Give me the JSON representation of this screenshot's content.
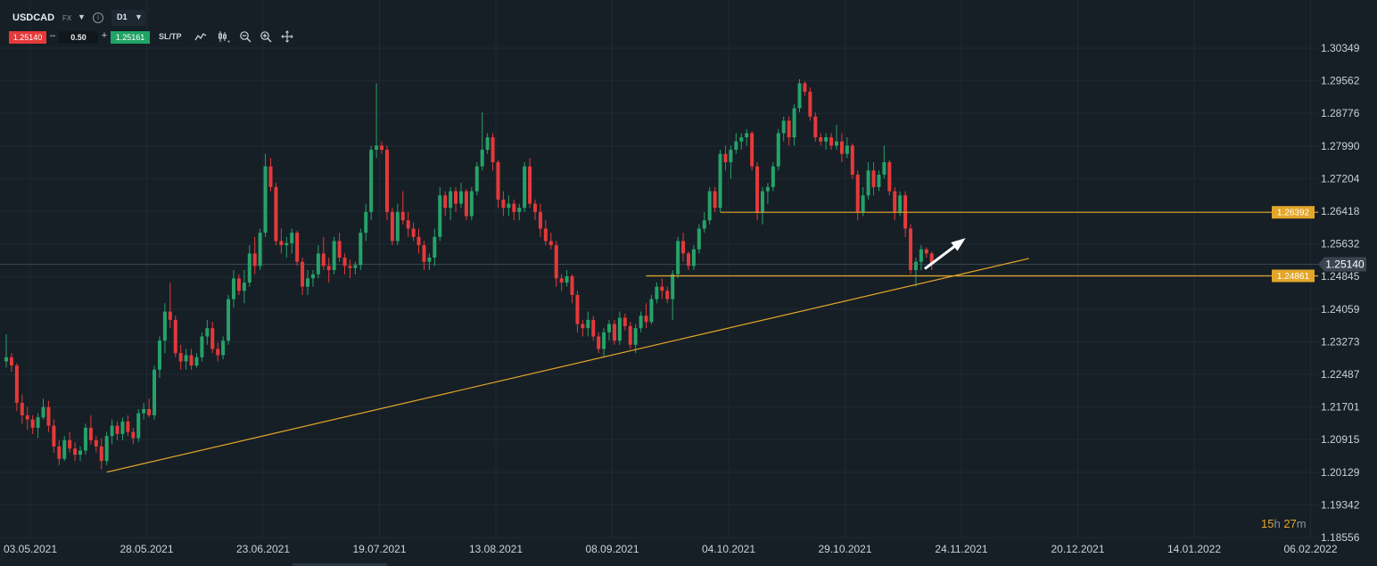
{
  "toolbar": {
    "symbol": "USDCAD",
    "market": "FX",
    "timeframe": "D1",
    "sell_price": "1.25140",
    "minus": "–",
    "quantity": "0.50",
    "plus": "+",
    "buy_price": "1.25161",
    "sltp_label": "SL/TP",
    "tools": [
      "line-chart-icon",
      "candles-settings-icon",
      "zoom-out-icon",
      "zoom-in-icon",
      "crosshair-icon"
    ]
  },
  "timer": {
    "hours": "15",
    "h_unit": "h",
    "minutes": "27",
    "m_unit": "m"
  },
  "colors": {
    "background": "#161f26",
    "grid": "#1f2a33",
    "bull": "#26a269",
    "bear": "#e5393a",
    "trendline": "#e4a62a",
    "current_price": "#3a4550"
  },
  "chart_data": {
    "type": "candlestick",
    "symbol": "USDCAD",
    "timeframe": "D1",
    "x_labels": [
      "03.05.2021",
      "28.05.2021",
      "23.06.2021",
      "19.07.2021",
      "13.08.2021",
      "08.09.2021",
      "04.10.2021",
      "29.10.2021",
      "24.11.2021",
      "20.12.2021",
      "14.01.2022",
      "06.02.2022"
    ],
    "y_ticks": [
      "1.30349",
      "1.29562",
      "1.28776",
      "1.27990",
      "1.27204",
      "1.26418",
      "1.25632",
      "1.24845",
      "1.24059",
      "1.23273",
      "1.22487",
      "1.21701",
      "1.20915",
      "1.20129",
      "1.19342",
      "1.18556"
    ],
    "ylim": [
      1.18556,
      1.30349
    ],
    "current_price": "1.25140",
    "levels": [
      {
        "label": "1.26392",
        "value": 1.26392,
        "from_index": 135,
        "to_index": 186
      },
      {
        "label": "1.24861",
        "value": 1.24861,
        "from_index": 121,
        "to_index": 186
      }
    ],
    "trendline": {
      "from_index": 19,
      "from_value": 1.2013,
      "to_index": 190,
      "to_value": 1.2528
    },
    "arrow": {
      "from_index": 172,
      "from_value": 1.2503,
      "to_index": 179,
      "to_value": 1.2572
    },
    "candles": [
      {
        "o": 1.228,
        "h": 1.2345,
        "l": 1.2265,
        "c": 1.229
      },
      {
        "o": 1.229,
        "h": 1.23,
        "l": 1.2255,
        "c": 1.227
      },
      {
        "o": 1.227,
        "h": 1.2275,
        "l": 1.216,
        "c": 1.218
      },
      {
        "o": 1.218,
        "h": 1.22,
        "l": 1.213,
        "c": 1.215
      },
      {
        "o": 1.215,
        "h": 1.217,
        "l": 1.2115,
        "c": 1.214
      },
      {
        "o": 1.214,
        "h": 1.215,
        "l": 1.2105,
        "c": 1.212
      },
      {
        "o": 1.212,
        "h": 1.2155,
        "l": 1.2095,
        "c": 1.2145
      },
      {
        "o": 1.2145,
        "h": 1.219,
        "l": 1.214,
        "c": 1.217
      },
      {
        "o": 1.217,
        "h": 1.2185,
        "l": 1.211,
        "c": 1.2125
      },
      {
        "o": 1.2125,
        "h": 1.214,
        "l": 1.206,
        "c": 1.2075
      },
      {
        "o": 1.2075,
        "h": 1.209,
        "l": 1.203,
        "c": 1.2045
      },
      {
        "o": 1.2045,
        "h": 1.21,
        "l": 1.204,
        "c": 1.209
      },
      {
        "o": 1.209,
        "h": 1.211,
        "l": 1.206,
        "c": 1.207
      },
      {
        "o": 1.207,
        "h": 1.2085,
        "l": 1.204,
        "c": 1.2055
      },
      {
        "o": 1.2055,
        "h": 1.2075,
        "l": 1.204,
        "c": 1.2065
      },
      {
        "o": 1.2065,
        "h": 1.213,
        "l": 1.2055,
        "c": 1.212
      },
      {
        "o": 1.212,
        "h": 1.215,
        "l": 1.208,
        "c": 1.209
      },
      {
        "o": 1.209,
        "h": 1.21,
        "l": 1.206,
        "c": 1.2075
      },
      {
        "o": 1.2075,
        "h": 1.2095,
        "l": 1.202,
        "c": 1.204
      },
      {
        "o": 1.204,
        "h": 1.211,
        "l": 1.203,
        "c": 1.21
      },
      {
        "o": 1.21,
        "h": 1.214,
        "l": 1.208,
        "c": 1.2125
      },
      {
        "o": 1.2125,
        "h": 1.2135,
        "l": 1.209,
        "c": 1.2105
      },
      {
        "o": 1.2105,
        "h": 1.2145,
        "l": 1.209,
        "c": 1.2135
      },
      {
        "o": 1.2135,
        "h": 1.215,
        "l": 1.21,
        "c": 1.211
      },
      {
        "o": 1.211,
        "h": 1.212,
        "l": 1.208,
        "c": 1.2095
      },
      {
        "o": 1.2095,
        "h": 1.2165,
        "l": 1.2085,
        "c": 1.2155
      },
      {
        "o": 1.2155,
        "h": 1.218,
        "l": 1.214,
        "c": 1.2165
      },
      {
        "o": 1.2165,
        "h": 1.219,
        "l": 1.2145,
        "c": 1.215
      },
      {
        "o": 1.215,
        "h": 1.227,
        "l": 1.214,
        "c": 1.226
      },
      {
        "o": 1.226,
        "h": 1.234,
        "l": 1.224,
        "c": 1.233
      },
      {
        "o": 1.233,
        "h": 1.242,
        "l": 1.23,
        "c": 1.24
      },
      {
        "o": 1.24,
        "h": 1.247,
        "l": 1.236,
        "c": 1.238
      },
      {
        "o": 1.238,
        "h": 1.239,
        "l": 1.229,
        "c": 1.23
      },
      {
        "o": 1.23,
        "h": 1.232,
        "l": 1.226,
        "c": 1.228
      },
      {
        "o": 1.228,
        "h": 1.231,
        "l": 1.226,
        "c": 1.2295
      },
      {
        "o": 1.2295,
        "h": 1.231,
        "l": 1.226,
        "c": 1.227
      },
      {
        "o": 1.227,
        "h": 1.23,
        "l": 1.2265,
        "c": 1.229
      },
      {
        "o": 1.229,
        "h": 1.235,
        "l": 1.228,
        "c": 1.234
      },
      {
        "o": 1.234,
        "h": 1.238,
        "l": 1.232,
        "c": 1.236
      },
      {
        "o": 1.236,
        "h": 1.2375,
        "l": 1.23,
        "c": 1.231
      },
      {
        "o": 1.231,
        "h": 1.2325,
        "l": 1.228,
        "c": 1.2295
      },
      {
        "o": 1.2295,
        "h": 1.234,
        "l": 1.2285,
        "c": 1.233
      },
      {
        "o": 1.233,
        "h": 1.244,
        "l": 1.232,
        "c": 1.243
      },
      {
        "o": 1.243,
        "h": 1.25,
        "l": 1.241,
        "c": 1.248
      },
      {
        "o": 1.248,
        "h": 1.249,
        "l": 1.244,
        "c": 1.245
      },
      {
        "o": 1.245,
        "h": 1.25,
        "l": 1.242,
        "c": 1.247
      },
      {
        "o": 1.247,
        "h": 1.256,
        "l": 1.246,
        "c": 1.254
      },
      {
        "o": 1.254,
        "h": 1.258,
        "l": 1.249,
        "c": 1.251
      },
      {
        "o": 1.251,
        "h": 1.26,
        "l": 1.25,
        "c": 1.259
      },
      {
        "o": 1.259,
        "h": 1.278,
        "l": 1.258,
        "c": 1.275
      },
      {
        "o": 1.275,
        "h": 1.277,
        "l": 1.269,
        "c": 1.27
      },
      {
        "o": 1.27,
        "h": 1.271,
        "l": 1.256,
        "c": 1.257
      },
      {
        "o": 1.257,
        "h": 1.26,
        "l": 1.254,
        "c": 1.256
      },
      {
        "o": 1.256,
        "h": 1.258,
        "l": 1.253,
        "c": 1.2565
      },
      {
        "o": 1.2565,
        "h": 1.26,
        "l": 1.254,
        "c": 1.259
      },
      {
        "o": 1.259,
        "h": 1.2595,
        "l": 1.251,
        "c": 1.252
      },
      {
        "o": 1.252,
        "h": 1.253,
        "l": 1.244,
        "c": 1.246
      },
      {
        "o": 1.246,
        "h": 1.25,
        "l": 1.244,
        "c": 1.248
      },
      {
        "o": 1.248,
        "h": 1.25,
        "l": 1.246,
        "c": 1.249
      },
      {
        "o": 1.249,
        "h": 1.256,
        "l": 1.248,
        "c": 1.254
      },
      {
        "o": 1.254,
        "h": 1.258,
        "l": 1.25,
        "c": 1.251
      },
      {
        "o": 1.251,
        "h": 1.253,
        "l": 1.247,
        "c": 1.25
      },
      {
        "o": 1.25,
        "h": 1.258,
        "l": 1.249,
        "c": 1.257
      },
      {
        "o": 1.257,
        "h": 1.259,
        "l": 1.252,
        "c": 1.253
      },
      {
        "o": 1.253,
        "h": 1.254,
        "l": 1.249,
        "c": 1.251
      },
      {
        "o": 1.251,
        "h": 1.2525,
        "l": 1.248,
        "c": 1.2505
      },
      {
        "o": 1.2505,
        "h": 1.252,
        "l": 1.249,
        "c": 1.2512
      },
      {
        "o": 1.2512,
        "h": 1.26,
        "l": 1.25,
        "c": 1.259
      },
      {
        "o": 1.259,
        "h": 1.266,
        "l": 1.257,
        "c": 1.264
      },
      {
        "o": 1.264,
        "h": 1.28,
        "l": 1.262,
        "c": 1.279
      },
      {
        "o": 1.279,
        "h": 1.295,
        "l": 1.277,
        "c": 1.28
      },
      {
        "o": 1.28,
        "h": 1.281,
        "l": 1.278,
        "c": 1.279
      },
      {
        "o": 1.279,
        "h": 1.28,
        "l": 1.262,
        "c": 1.264
      },
      {
        "o": 1.264,
        "h": 1.265,
        "l": 1.256,
        "c": 1.257
      },
      {
        "o": 1.257,
        "h": 1.266,
        "l": 1.256,
        "c": 1.264
      },
      {
        "o": 1.264,
        "h": 1.269,
        "l": 1.261,
        "c": 1.262
      },
      {
        "o": 1.262,
        "h": 1.264,
        "l": 1.258,
        "c": 1.26
      },
      {
        "o": 1.26,
        "h": 1.2615,
        "l": 1.257,
        "c": 1.258
      },
      {
        "o": 1.258,
        "h": 1.26,
        "l": 1.254,
        "c": 1.256
      },
      {
        "o": 1.256,
        "h": 1.257,
        "l": 1.25,
        "c": 1.252
      },
      {
        "o": 1.252,
        "h": 1.254,
        "l": 1.25,
        "c": 1.253
      },
      {
        "o": 1.253,
        "h": 1.26,
        "l": 1.251,
        "c": 1.258
      },
      {
        "o": 1.258,
        "h": 1.27,
        "l": 1.257,
        "c": 1.268
      },
      {
        "o": 1.268,
        "h": 1.269,
        "l": 1.263,
        "c": 1.265
      },
      {
        "o": 1.265,
        "h": 1.27,
        "l": 1.262,
        "c": 1.269
      },
      {
        "o": 1.269,
        "h": 1.27,
        "l": 1.264,
        "c": 1.266
      },
      {
        "o": 1.266,
        "h": 1.271,
        "l": 1.265,
        "c": 1.269
      },
      {
        "o": 1.269,
        "h": 1.2695,
        "l": 1.262,
        "c": 1.263
      },
      {
        "o": 1.263,
        "h": 1.27,
        "l": 1.262,
        "c": 1.269
      },
      {
        "o": 1.269,
        "h": 1.276,
        "l": 1.268,
        "c": 1.275
      },
      {
        "o": 1.275,
        "h": 1.288,
        "l": 1.274,
        "c": 1.279
      },
      {
        "o": 1.279,
        "h": 1.283,
        "l": 1.278,
        "c": 1.282
      },
      {
        "o": 1.282,
        "h": 1.283,
        "l": 1.274,
        "c": 1.276
      },
      {
        "o": 1.276,
        "h": 1.2765,
        "l": 1.265,
        "c": 1.267
      },
      {
        "o": 1.267,
        "h": 1.269,
        "l": 1.263,
        "c": 1.265
      },
      {
        "o": 1.265,
        "h": 1.268,
        "l": 1.263,
        "c": 1.266
      },
      {
        "o": 1.266,
        "h": 1.267,
        "l": 1.262,
        "c": 1.264
      },
      {
        "o": 1.264,
        "h": 1.266,
        "l": 1.262,
        "c": 1.265
      },
      {
        "o": 1.265,
        "h": 1.276,
        "l": 1.264,
        "c": 1.275
      },
      {
        "o": 1.275,
        "h": 1.277,
        "l": 1.265,
        "c": 1.266
      },
      {
        "o": 1.266,
        "h": 1.267,
        "l": 1.262,
        "c": 1.264
      },
      {
        "o": 1.264,
        "h": 1.266,
        "l": 1.258,
        "c": 1.26
      },
      {
        "o": 1.26,
        "h": 1.262,
        "l": 1.256,
        "c": 1.257
      },
      {
        "o": 1.257,
        "h": 1.259,
        "l": 1.255,
        "c": 1.256
      },
      {
        "o": 1.256,
        "h": 1.257,
        "l": 1.246,
        "c": 1.248
      },
      {
        "o": 1.248,
        "h": 1.249,
        "l": 1.245,
        "c": 1.247
      },
      {
        "o": 1.247,
        "h": 1.25,
        "l": 1.246,
        "c": 1.2485
      },
      {
        "o": 1.2485,
        "h": 1.249,
        "l": 1.242,
        "c": 1.244
      },
      {
        "o": 1.244,
        "h": 1.245,
        "l": 1.235,
        "c": 1.237
      },
      {
        "o": 1.237,
        "h": 1.238,
        "l": 1.234,
        "c": 1.236
      },
      {
        "o": 1.236,
        "h": 1.24,
        "l": 1.234,
        "c": 1.238
      },
      {
        "o": 1.238,
        "h": 1.239,
        "l": 1.233,
        "c": 1.234
      },
      {
        "o": 1.234,
        "h": 1.235,
        "l": 1.23,
        "c": 1.231
      },
      {
        "o": 1.231,
        "h": 1.236,
        "l": 1.229,
        "c": 1.235
      },
      {
        "o": 1.235,
        "h": 1.238,
        "l": 1.233,
        "c": 1.237
      },
      {
        "o": 1.237,
        "h": 1.238,
        "l": 1.232,
        "c": 1.233
      },
      {
        "o": 1.233,
        "h": 1.24,
        "l": 1.232,
        "c": 1.2385
      },
      {
        "o": 1.2385,
        "h": 1.2395,
        "l": 1.2355,
        "c": 1.2365
      },
      {
        "o": 1.2365,
        "h": 1.2375,
        "l": 1.231,
        "c": 1.232
      },
      {
        "o": 1.232,
        "h": 1.237,
        "l": 1.23,
        "c": 1.236
      },
      {
        "o": 1.236,
        "h": 1.24,
        "l": 1.235,
        "c": 1.239
      },
      {
        "o": 1.239,
        "h": 1.242,
        "l": 1.236,
        "c": 1.2375
      },
      {
        "o": 1.2375,
        "h": 1.244,
        "l": 1.237,
        "c": 1.243
      },
      {
        "o": 1.243,
        "h": 1.247,
        "l": 1.242,
        "c": 1.246
      },
      {
        "o": 1.246,
        "h": 1.248,
        "l": 1.243,
        "c": 1.245
      },
      {
        "o": 1.245,
        "h": 1.246,
        "l": 1.242,
        "c": 1.243
      },
      {
        "o": 1.243,
        "h": 1.25,
        "l": 1.238,
        "c": 1.249
      },
      {
        "o": 1.249,
        "h": 1.258,
        "l": 1.248,
        "c": 1.257
      },
      {
        "o": 1.257,
        "h": 1.259,
        "l": 1.252,
        "c": 1.254
      },
      {
        "o": 1.254,
        "h": 1.2545,
        "l": 1.25,
        "c": 1.251
      },
      {
        "o": 1.251,
        "h": 1.256,
        "l": 1.25,
        "c": 1.255
      },
      {
        "o": 1.255,
        "h": 1.261,
        "l": 1.254,
        "c": 1.26
      },
      {
        "o": 1.26,
        "h": 1.264,
        "l": 1.259,
        "c": 1.262
      },
      {
        "o": 1.262,
        "h": 1.27,
        "l": 1.261,
        "c": 1.269
      },
      {
        "o": 1.269,
        "h": 1.27,
        "l": 1.264,
        "c": 1.265
      },
      {
        "o": 1.265,
        "h": 1.279,
        "l": 1.264,
        "c": 1.278
      },
      {
        "o": 1.278,
        "h": 1.28,
        "l": 1.274,
        "c": 1.276
      },
      {
        "o": 1.276,
        "h": 1.28,
        "l": 1.272,
        "c": 1.279
      },
      {
        "o": 1.279,
        "h": 1.283,
        "l": 1.278,
        "c": 1.281
      },
      {
        "o": 1.281,
        "h": 1.283,
        "l": 1.279,
        "c": 1.282
      },
      {
        "o": 1.282,
        "h": 1.284,
        "l": 1.28,
        "c": 1.283
      },
      {
        "o": 1.283,
        "h": 1.2835,
        "l": 1.274,
        "c": 1.275
      },
      {
        "o": 1.275,
        "h": 1.276,
        "l": 1.262,
        "c": 1.264
      },
      {
        "o": 1.264,
        "h": 1.27,
        "l": 1.261,
        "c": 1.269
      },
      {
        "o": 1.269,
        "h": 1.271,
        "l": 1.266,
        "c": 1.27
      },
      {
        "o": 1.27,
        "h": 1.276,
        "l": 1.269,
        "c": 1.275
      },
      {
        "o": 1.275,
        "h": 1.284,
        "l": 1.274,
        "c": 1.283
      },
      {
        "o": 1.283,
        "h": 1.287,
        "l": 1.281,
        "c": 1.286
      },
      {
        "o": 1.286,
        "h": 1.287,
        "l": 1.28,
        "c": 1.282
      },
      {
        "o": 1.282,
        "h": 1.29,
        "l": 1.28,
        "c": 1.289
      },
      {
        "o": 1.289,
        "h": 1.296,
        "l": 1.288,
        "c": 1.295
      },
      {
        "o": 1.295,
        "h": 1.2955,
        "l": 1.292,
        "c": 1.293
      },
      {
        "o": 1.293,
        "h": 1.294,
        "l": 1.286,
        "c": 1.287
      },
      {
        "o": 1.287,
        "h": 1.288,
        "l": 1.281,
        "c": 1.282
      },
      {
        "o": 1.282,
        "h": 1.283,
        "l": 1.28,
        "c": 1.281
      },
      {
        "o": 1.281,
        "h": 1.283,
        "l": 1.279,
        "c": 1.282
      },
      {
        "o": 1.282,
        "h": 1.283,
        "l": 1.279,
        "c": 1.28
      },
      {
        "o": 1.28,
        "h": 1.285,
        "l": 1.279,
        "c": 1.281
      },
      {
        "o": 1.281,
        "h": 1.283,
        "l": 1.276,
        "c": 1.278
      },
      {
        "o": 1.278,
        "h": 1.282,
        "l": 1.277,
        "c": 1.28
      },
      {
        "o": 1.28,
        "h": 1.2805,
        "l": 1.272,
        "c": 1.273
      },
      {
        "o": 1.273,
        "h": 1.274,
        "l": 1.262,
        "c": 1.264
      },
      {
        "o": 1.264,
        "h": 1.27,
        "l": 1.263,
        "c": 1.268
      },
      {
        "o": 1.268,
        "h": 1.276,
        "l": 1.267,
        "c": 1.274
      },
      {
        "o": 1.274,
        "h": 1.276,
        "l": 1.268,
        "c": 1.27
      },
      {
        "o": 1.27,
        "h": 1.274,
        "l": 1.269,
        "c": 1.273
      },
      {
        "o": 1.273,
        "h": 1.28,
        "l": 1.272,
        "c": 1.276
      },
      {
        "o": 1.276,
        "h": 1.2765,
        "l": 1.268,
        "c": 1.269
      },
      {
        "o": 1.269,
        "h": 1.27,
        "l": 1.262,
        "c": 1.264
      },
      {
        "o": 1.264,
        "h": 1.269,
        "l": 1.263,
        "c": 1.268
      },
      {
        "o": 1.268,
        "h": 1.269,
        "l": 1.258,
        "c": 1.26
      },
      {
        "o": 1.26,
        "h": 1.261,
        "l": 1.249,
        "c": 1.25
      },
      {
        "o": 1.25,
        "h": 1.253,
        "l": 1.246,
        "c": 1.252
      },
      {
        "o": 1.252,
        "h": 1.256,
        "l": 1.25,
        "c": 1.255
      },
      {
        "o": 1.255,
        "h": 1.2555,
        "l": 1.253,
        "c": 1.254
      },
      {
        "o": 1.254,
        "h": 1.2545,
        "l": 1.25,
        "c": 1.2514
      }
    ]
  }
}
